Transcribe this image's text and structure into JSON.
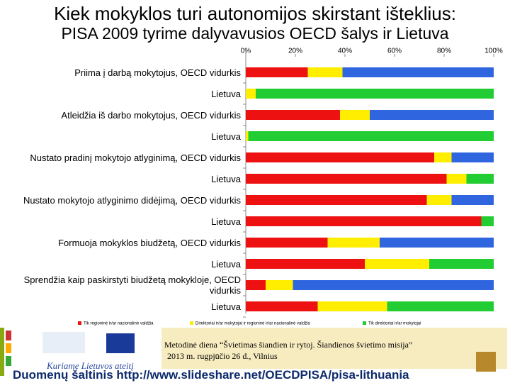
{
  "header": {
    "title": "Kiek mokyklos turi autonomijos skirstant išteklius:",
    "subtitle": "PISA 2009 tyrime dalyvavusios OECD šalys ir Lietuva"
  },
  "chart_data": {
    "type": "stacked-bar-horizontal",
    "categories": [
      "Priima į darbą mokytojus, OECD vidurkis",
      "Lietuva",
      "Atleidžia iš darbo mokytojus, OECD vidurkis",
      "Lietuva",
      "Nustato pradinį mokytojo atlyginimą, OECD vidurkis",
      "Lietuva",
      "Nustato mokytojo atlyginimo didėjimą, OECD vidurkis",
      "Lietuva",
      "Formuoja mokyklos biudžetą, OECD vidurkis",
      "Lietuva",
      "Sprendžia kaip paskirstyti biudžetą mokykloje, OECD vidurkis",
      "Lietuva"
    ],
    "series": [
      {
        "name": "Tik regioninė ir/ar nacionalinė valdžia",
        "color": "#ee1111",
        "values": [
          25,
          0,
          38,
          0,
          76,
          81,
          73,
          95,
          33,
          48,
          8,
          29
        ]
      },
      {
        "name": "Direktoriai ir/ar mokytojai ir regioninė ir/ar nacionalinė valdžia",
        "color": "#ffee00",
        "values": [
          14,
          4,
          12,
          1,
          7,
          8,
          10,
          0,
          21,
          26,
          11,
          28
        ]
      },
      {
        "name": "Tik direktoriai ir/ar mokytojai",
        "color": "#22cc33",
        "values": [
          61,
          96,
          50,
          99,
          17,
          11,
          17,
          5,
          46,
          26,
          81,
          43
        ],
        "colors": [
          "#2f66e0",
          "#22cc33",
          "#2f66e0",
          "#22cc33",
          "#2f66e0",
          "#22cc33",
          "#2f66e0",
          "#22cc33",
          "#2f66e0",
          "#22cc33",
          "#2f66e0",
          "#22cc33"
        ]
      }
    ],
    "xlim": [
      0,
      100
    ],
    "xticks": [
      {
        "value": 0,
        "label": "0%"
      },
      {
        "value": 20,
        "label": "20%"
      },
      {
        "value": 40,
        "label": "40%"
      },
      {
        "value": 60,
        "label": "60%"
      },
      {
        "value": 80,
        "label": "80%"
      },
      {
        "value": 100,
        "label": "100%"
      }
    ],
    "grid": false
  },
  "footer": {
    "logo_text": "Kuriame Lietuvos ateitį",
    "event": "Metodinė diena “Švietimas šiandien ir rytoj. Šiandienos švietimo misija”",
    "date": "2013 m. rugpjūčio 26 d., Vilnius",
    "source": "Duomenų šaltinis http://www.slideshare.net/OECDPISA/pisa-lithuania"
  }
}
